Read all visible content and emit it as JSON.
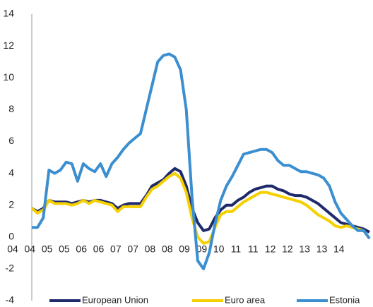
{
  "chart_data": {
    "type": "line",
    "categories": [
      "04",
      null,
      null,
      "04",
      null,
      null,
      "05",
      null,
      null,
      "05",
      null,
      null,
      "06",
      null,
      null,
      "06",
      null,
      null,
      "07",
      null,
      null,
      "07",
      null,
      null,
      "08",
      null,
      null,
      "08",
      null,
      null,
      "09",
      null,
      null,
      "09",
      null,
      null,
      "10",
      null,
      null,
      "11",
      null,
      null,
      "11",
      null,
      null,
      "12",
      null,
      null,
      "12",
      null,
      null,
      "13",
      null,
      null,
      "13",
      null,
      null,
      "14",
      null,
      null
    ],
    "series": [
      {
        "name": "European Union",
        "color": "#1f2a6b",
        "values": [
          1.8,
          1.6,
          1.8,
          2.3,
          2.2,
          2.2,
          2.2,
          2.1,
          2.2,
          2.3,
          2.2,
          2.3,
          2.3,
          2.2,
          2.1,
          1.8,
          2,
          2.1,
          2.1,
          2.1,
          2.6,
          3.2,
          3.4,
          3.6,
          4,
          4.3,
          4.1,
          3.2,
          1.8,
          0.9,
          0.4,
          0.5,
          1.2,
          1.7,
          2,
          2,
          2.3,
          2.5,
          2.8,
          3,
          3.1,
          3.2,
          3.2,
          3,
          2.9,
          2.7,
          2.6,
          2.6,
          2.5,
          2.3,
          2.1,
          1.8,
          1.5,
          1.2,
          0.9,
          0.8,
          0.7,
          0.6,
          0.5,
          0.3
        ]
      },
      {
        "name": "Euro area",
        "color": "#f5d000",
        "values": [
          1.8,
          1.5,
          1.7,
          2.3,
          2.1,
          2.1,
          2.1,
          2,
          2.1,
          2.3,
          2.1,
          2.3,
          2.2,
          2.1,
          2,
          1.6,
          1.9,
          1.9,
          1.9,
          1.9,
          2.5,
          3,
          3.2,
          3.5,
          3.8,
          4,
          3.7,
          2.8,
          1.2,
          0,
          -0.4,
          -0.3,
          0.6,
          1.4,
          1.6,
          1.6,
          1.9,
          2.2,
          2.4,
          2.6,
          2.8,
          2.8,
          2.7,
          2.6,
          2.5,
          2.4,
          2.3,
          2.2,
          2,
          1.7,
          1.4,
          1.2,
          1,
          0.7,
          0.6,
          0.7,
          0.6,
          0.5,
          0.4,
          -0.1
        ]
      },
      {
        "name": "Estonia",
        "color": "#3b8fd0",
        "values": [
          0.6,
          0.6,
          1.2,
          4.2,
          4,
          4.2,
          4.7,
          4.6,
          3.5,
          4.6,
          4.3,
          4.1,
          4.6,
          3.8,
          4.6,
          5,
          5.5,
          5.9,
          6.2,
          6.5,
          8,
          9.5,
          11,
          11.4,
          11.5,
          11.3,
          10.5,
          8,
          2.5,
          -1.5,
          -2,
          -1,
          0.8,
          2.3,
          3.2,
          3.8,
          4.5,
          5.2,
          5.3,
          5.4,
          5.5,
          5.5,
          5.3,
          4.8,
          4.5,
          4.5,
          4.3,
          4.1,
          4.1,
          4,
          3.9,
          3.7,
          3.2,
          2.2,
          1.5,
          1.1,
          0.7,
          0.4,
          0.4,
          -0.1
        ]
      }
    ],
    "ylim": [
      -4,
      14
    ],
    "yticks": [
      -4,
      -2,
      0,
      2,
      4,
      6,
      8,
      10,
      12,
      14
    ],
    "grid": false,
    "legend": "bottom"
  }
}
